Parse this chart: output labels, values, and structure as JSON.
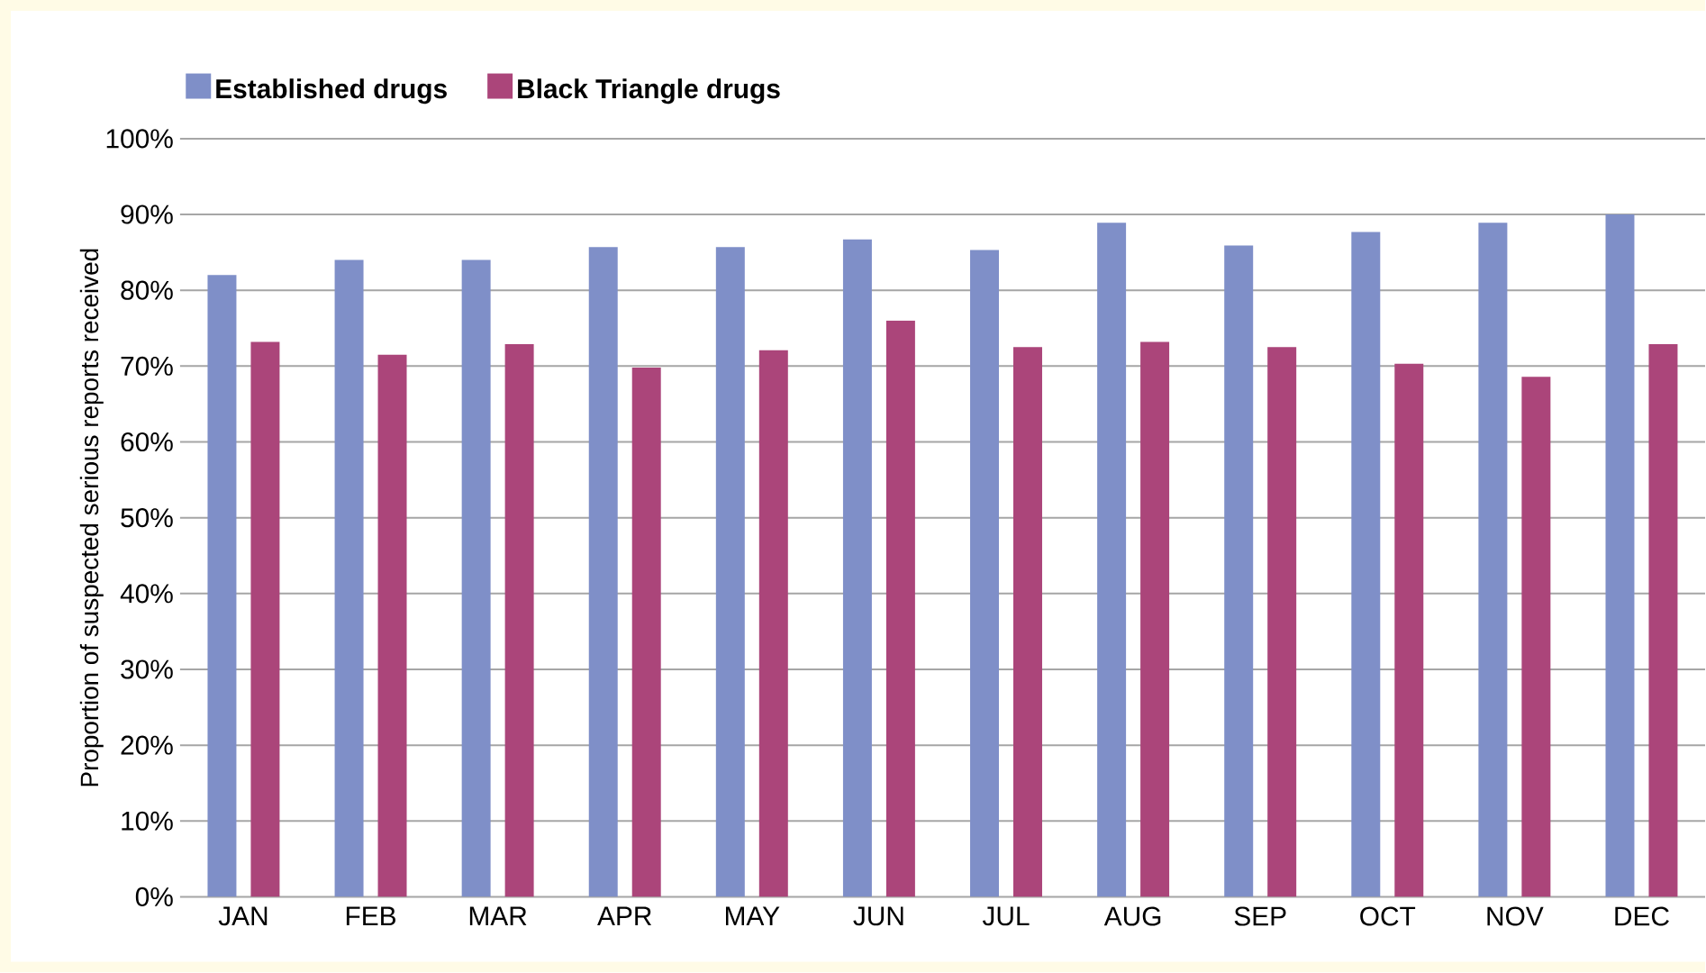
{
  "chart_data": {
    "type": "bar",
    "ylabel": "Proportion of suspected serious reports received",
    "categories": [
      "JAN",
      "FEB",
      "MAR",
      "APR",
      "MAY",
      "JUN",
      "JUL",
      "AUG",
      "SEP",
      "OCT",
      "NOV",
      "DEC"
    ],
    "series": [
      {
        "name": "Established drugs",
        "color": "#7f8fc8",
        "values": [
          82,
          84,
          84,
          85.7,
          85.7,
          86.7,
          85.3,
          88.9,
          85.9,
          87.7,
          88.9,
          90
        ]
      },
      {
        "name": "Black Triangle drugs",
        "color": "#ab457a",
        "values": [
          73.2,
          71.5,
          72.9,
          69.8,
          72.1,
          76,
          72.5,
          73.2,
          72.5,
          70.3,
          68.6,
          72.9
        ]
      }
    ],
    "ylim": [
      0,
      100
    ],
    "yticks": [
      {
        "value": 0,
        "label": "0%"
      },
      {
        "value": 10,
        "label": "10%"
      },
      {
        "value": 20,
        "label": "20%"
      },
      {
        "value": 30,
        "label": "30%"
      },
      {
        "value": 40,
        "label": "40%"
      },
      {
        "value": 50,
        "label": "50%"
      },
      {
        "value": 60,
        "label": "60%"
      },
      {
        "value": 70,
        "label": "70%"
      },
      {
        "value": 80,
        "label": "80%"
      },
      {
        "value": 90,
        "label": "90%"
      },
      {
        "value": 100,
        "label": "100%"
      }
    ],
    "grid": "y",
    "legend": "top left"
  }
}
